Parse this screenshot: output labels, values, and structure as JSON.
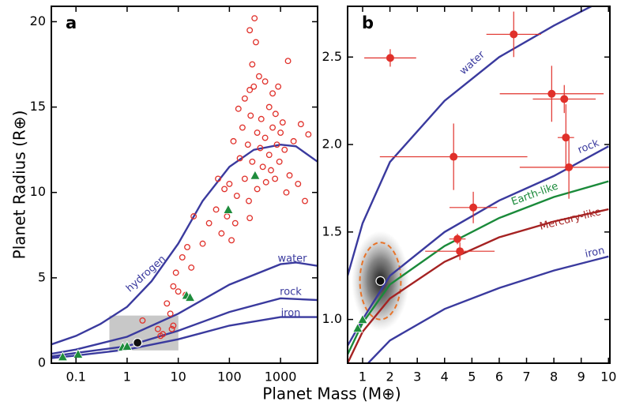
{
  "chart_data": [
    {
      "type": "scatter",
      "label": "a",
      "ylabel": "Planet Radius (R⊕)",
      "xlog": true,
      "xlim": [
        0.033,
        5300
      ],
      "ylim": [
        0,
        20.9
      ],
      "xticks": [
        0.1,
        1,
        10,
        100,
        1000
      ],
      "yticks": [
        0,
        5,
        10,
        15,
        20
      ],
      "series": [
        {
          "name": "hydrogen",
          "kind": "line",
          "color": "#3a3a9e",
          "x": [
            0.033,
            0.1,
            0.3,
            1,
            3,
            10,
            30,
            100,
            300,
            1000,
            2000,
            5300
          ],
          "values": [
            1.1,
            1.6,
            2.3,
            3.3,
            4.8,
            7.0,
            9.5,
            11.5,
            12.5,
            12.8,
            12.7,
            11.8
          ]
        },
        {
          "name": "water",
          "kind": "line",
          "color": "#3a3a9e",
          "x": [
            0.033,
            0.1,
            1,
            10,
            100,
            1000,
            2000,
            5300
          ],
          "values": [
            0.55,
            0.8,
            1.55,
            2.9,
            4.6,
            5.8,
            5.9,
            5.7
          ]
        },
        {
          "name": "rock",
          "kind": "line",
          "color": "#3a3a9e",
          "x": [
            0.033,
            0.1,
            1,
            10,
            100,
            1000,
            5300
          ],
          "values": [
            0.4,
            0.6,
            1.0,
            1.9,
            3.0,
            3.8,
            3.7
          ]
        },
        {
          "name": "iron",
          "kind": "line",
          "color": "#3a3a9e",
          "x": [
            0.033,
            0.1,
            1,
            10,
            100,
            1000,
            5300
          ],
          "values": [
            0.3,
            0.45,
            0.8,
            1.4,
            2.2,
            2.7,
            2.7
          ]
        },
        {
          "kind": "open-circle",
          "color": "#e0302a",
          "x": [
            250,
            310,
            330,
            280,
            300,
            200,
            380,
            250,
            500,
            700,
            900,
            1400,
            150,
            260,
            420,
            600,
            800,
            1100,
            180,
            350,
            500,
            700,
            1000,
            2500,
            3500,
            120,
            230,
            400,
            600,
            850,
            1200,
            1800,
            160,
            280,
            450,
            650,
            950,
            1500,
            2200,
            100,
            200,
            350,
            520,
            780,
            1300,
            3000,
            60,
            80,
            140,
            240,
            55,
            90,
            130,
            20,
            40,
            70,
            30,
            110,
            250,
            18,
            15,
            12,
            9,
            8,
            10,
            6,
            14,
            7,
            4,
            4.5,
            8,
            7.5,
            2,
            5
          ],
          "values": [
            19.5,
            20.2,
            18.8,
            17.5,
            16.2,
            15.5,
            16.8,
            16.0,
            16.5,
            15.8,
            16.2,
            17.7,
            14.9,
            14.5,
            14.3,
            15.0,
            14.6,
            14.1,
            13.8,
            13.5,
            13.2,
            13.8,
            13.5,
            14.0,
            13.4,
            13.0,
            12.8,
            12.6,
            12.2,
            12.8,
            12.5,
            13.0,
            12.0,
            11.8,
            11.5,
            11.3,
            11.8,
            11.0,
            10.5,
            10.5,
            10.8,
            10.2,
            10.6,
            10.8,
            10.0,
            9.5,
            10.8,
            10.2,
            9.8,
            9.5,
            9.0,
            8.6,
            8.2,
            8.6,
            8.2,
            7.6,
            7.0,
            7.2,
            8.5,
            5.6,
            6.8,
            6.2,
            5.3,
            4.5,
            4.2,
            3.5,
            4.0,
            2.9,
            2.0,
            1.6,
            2.2,
            2.0,
            2.5,
            1.7
          ]
        },
        {
          "kind": "triangle",
          "color": "#1e8c3c",
          "x": [
            0.055,
            0.11,
            0.82,
            1,
            14.5,
            17,
            95,
            318
          ],
          "values": [
            0.38,
            0.53,
            0.95,
            1.0,
            3.98,
            3.86,
            9.0,
            11.0
          ]
        },
        {
          "kind": "dot",
          "color": "#111111",
          "x": [
            1.6
          ],
          "values": [
            1.2
          ]
        }
      ]
    },
    {
      "type": "scatter",
      "label": "b",
      "xlog": false,
      "xlim": [
        0.45,
        10.05
      ],
      "ylim": [
        0.75,
        2.79
      ],
      "xticks": [
        1,
        2,
        3,
        4,
        5,
        6,
        7,
        8,
        9,
        10
      ],
      "yticks": [
        {
          "value": 1,
          "label": "1.0"
        },
        1.5,
        {
          "value": 2,
          "label": "2.0"
        },
        2.5
      ],
      "region": {
        "x": 1.65,
        "y": 1.22,
        "rx": 0.75,
        "ry": 0.22
      },
      "series": [
        {
          "name": "water",
          "kind": "line",
          "color": "#3a3a9e",
          "x": [
            0.45,
            1,
            2,
            4,
            6,
            8,
            9,
            10
          ],
          "values": [
            1.25,
            1.55,
            1.9,
            2.25,
            2.5,
            2.68,
            2.76,
            2.84
          ]
        },
        {
          "name": "rock",
          "kind": "line",
          "color": "#3a3a9e",
          "x": [
            0.45,
            1,
            2,
            4,
            6,
            8,
            10
          ],
          "values": [
            0.85,
            1.0,
            1.25,
            1.5,
            1.68,
            1.82,
            1.99
          ]
        },
        {
          "name": "Earth-like",
          "kind": "line",
          "color": "#1a8a3a",
          "x": [
            0.45,
            1,
            2,
            4,
            6,
            8,
            10
          ],
          "values": [
            0.8,
            0.98,
            1.2,
            1.42,
            1.58,
            1.7,
            1.79
          ]
        },
        {
          "name": "Mercury-like",
          "kind": "line",
          "color": "#a52222",
          "x": [
            0.45,
            1,
            2,
            4,
            6,
            8,
            10
          ],
          "values": [
            0.75,
            0.93,
            1.12,
            1.33,
            1.47,
            1.56,
            1.63
          ]
        },
        {
          "name": "iron",
          "kind": "line",
          "color": "#3a3a9e",
          "x": [
            1.2,
            2,
            4,
            6,
            8,
            10
          ],
          "values": [
            0.75,
            0.88,
            1.06,
            1.18,
            1.28,
            1.36
          ]
        },
        {
          "kind": "dot",
          "color": "#111111",
          "x": [
            1.65
          ],
          "values": [
            1.22
          ]
        },
        {
          "kind": "triangle",
          "color": "#1e8c3c",
          "x": [
            0.82,
            1.0
          ],
          "values": [
            0.95,
            1.0
          ]
        },
        {
          "kind": "error-dot",
          "color": "#e0302a",
          "x": [
            2.01,
            6.53,
            7.92,
            8.38,
            8.44,
            4.33,
            8.55,
            5.05,
            4.47,
            4.56
          ],
          "values": [
            2.495,
            2.63,
            2.29,
            2.26,
            2.04,
            1.93,
            1.87,
            1.64,
            1.46,
            1.39
          ],
          "xerr": [
            0.95,
            1.0,
            1.9,
            1.15,
            0.3,
            2.7,
            1.8,
            0.87,
            0.3,
            1.27
          ],
          "yerr": [
            0.05,
            0.13,
            0.16,
            0.08,
            0.19,
            0.19,
            0.18,
            0.09,
            0.03,
            0.05
          ]
        }
      ]
    }
  ],
  "xlabel": "Planet Mass (M⊕)"
}
